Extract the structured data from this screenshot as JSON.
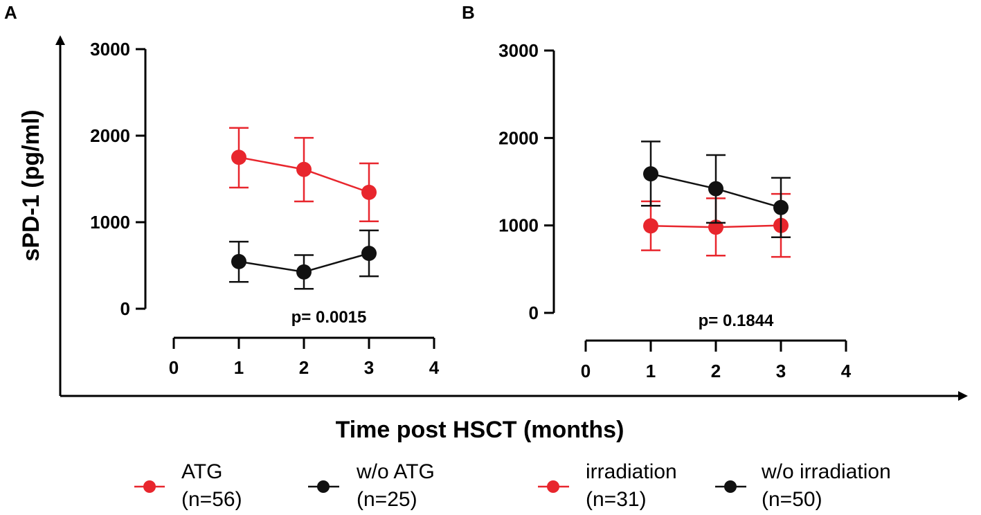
{
  "colors": {
    "red": "#e8262d",
    "black": "#111111",
    "axis": "#000000"
  },
  "chart_data": [
    {
      "panel": "A",
      "type": "line",
      "xlabel": "Time post HSCT (months)",
      "ylabel": "sPD-1 (pg/ml)",
      "xlim": [
        0,
        4
      ],
      "ylim": [
        0,
        3000
      ],
      "xticks": [
        "0",
        "1",
        "2",
        "3",
        "4"
      ],
      "yticks": [
        "0",
        "1000",
        "2000",
        "3000"
      ],
      "annotation": "p= 0.0015",
      "series": [
        {
          "name": "ATG",
          "n": "(n=56)",
          "color": "red",
          "x": [
            1,
            2,
            3
          ],
          "y": [
            1750,
            1610,
            1345
          ],
          "err_low": [
            1400,
            1240,
            1010
          ],
          "err_high": [
            2090,
            1975,
            1680
          ]
        },
        {
          "name": "w/o ATG",
          "n": "(n=25)",
          "color": "black",
          "x": [
            1,
            2,
            3
          ],
          "y": [
            545,
            425,
            640
          ],
          "err_low": [
            310,
            230,
            375
          ],
          "err_high": [
            775,
            620,
            905
          ]
        }
      ]
    },
    {
      "panel": "B",
      "type": "line",
      "xlabel": "Time post HSCT (months)",
      "ylabel": "sPD-1 (pg/ml)",
      "xlim": [
        0,
        4
      ],
      "ylim": [
        0,
        3000
      ],
      "xticks": [
        "0",
        "1",
        "2",
        "3",
        "4"
      ],
      "yticks": [
        "0",
        "1000",
        "2000",
        "3000"
      ],
      "annotation": "p= 0.1844",
      "series": [
        {
          "name": "irradiation",
          "n": "(n=31)",
          "color": "red",
          "x": [
            1,
            2,
            3
          ],
          "y": [
            995,
            980,
            1000
          ],
          "err_low": [
            715,
            655,
            640
          ],
          "err_high": [
            1275,
            1310,
            1360
          ]
        },
        {
          "name": "w/o irradiation",
          "n": "(n=50)",
          "color": "black",
          "x": [
            1,
            2,
            3
          ],
          "y": [
            1590,
            1420,
            1205
          ],
          "err_low": [
            1225,
            1030,
            865
          ],
          "err_high": [
            1960,
            1805,
            1545
          ]
        }
      ]
    }
  ]
}
